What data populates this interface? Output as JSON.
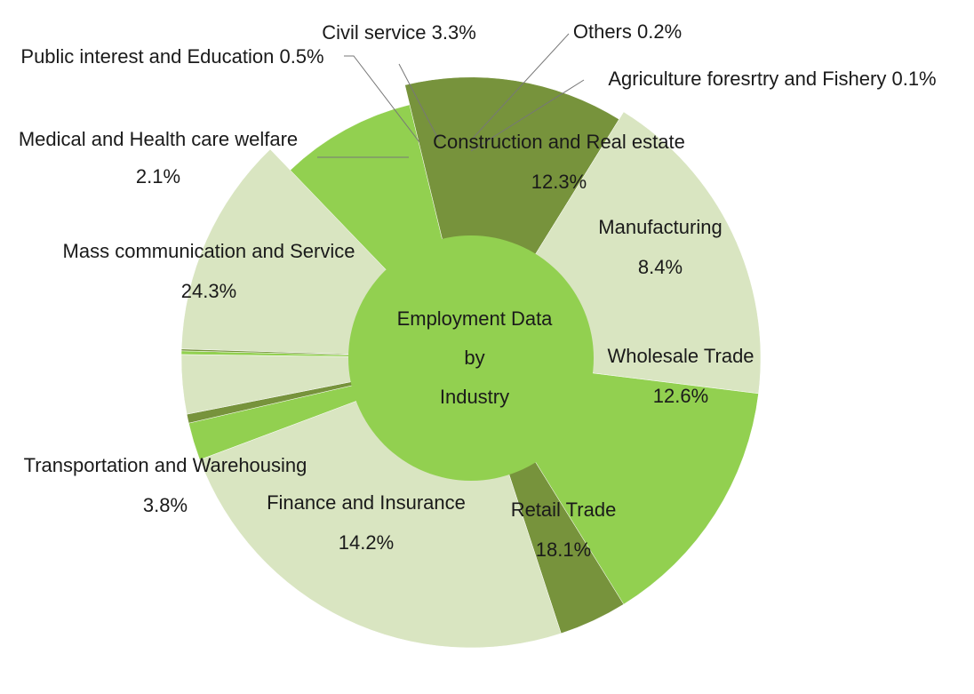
{
  "chart_data": {
    "type": "pie",
    "title": "Employment Data by Industry",
    "title_lines": [
      "Employment Data",
      "by",
      "Industry"
    ],
    "slices": [
      {
        "name": "Construction and Real estate",
        "label": "Construction and Real estate",
        "value": 12.3,
        "value_label": "12.3%",
        "color": "#d9e5c1",
        "r_fraction": 1.0
      },
      {
        "name": "Manufacturing",
        "label": "Manufacturing",
        "value": 8.4,
        "value_label": "8.4%",
        "color": "#92d050",
        "r_fraction": 0.9
      },
      {
        "name": "Wholesale Trade",
        "label": "Wholesale Trade",
        "value": 12.6,
        "value_label": "12.6%",
        "color": "#77933c",
        "r_fraction": 0.97
      },
      {
        "name": "Retail Trade",
        "label": "Retail Trade",
        "value": 18.1,
        "value_label": "18.1%",
        "color": "#d9e5c1",
        "r_fraction": 1.0
      },
      {
        "name": "Finance and Insurance",
        "label": "Finance and Insurance",
        "value": 14.2,
        "value_label": "14.2%",
        "color": "#92d050",
        "r_fraction": 1.0
      },
      {
        "name": "Transportation and Warehousing",
        "label": "Transportation and Warehousing",
        "value": 3.8,
        "value_label": "3.8%",
        "color": "#77933c",
        "r_fraction": 1.0
      },
      {
        "name": "Mass communication and Service",
        "label": "Mass communication and Service",
        "value": 24.3,
        "value_label": "24.3%",
        "color": "#d9e5c1",
        "r_fraction": 1.0
      },
      {
        "name": "Medical and Health care welfare",
        "label": "Medical and Health care welfare",
        "value": 2.1,
        "value_label": "2.1%",
        "color": "#92d050",
        "r_fraction": 1.0
      },
      {
        "name": "Public interest and Education",
        "label": "Public interest and Education 0.5%",
        "value": 0.5,
        "value_label": "",
        "color": "#77933c",
        "r_fraction": 1.0
      },
      {
        "name": "Civil service",
        "label": "Civil service 3.3%",
        "value": 3.3,
        "value_label": "",
        "color": "#d9e5c1",
        "r_fraction": 1.0
      },
      {
        "name": "Others",
        "label": "Others 0.2%",
        "value": 0.2,
        "value_label": "",
        "color": "#92d050",
        "r_fraction": 1.0
      },
      {
        "name": "Agriculture foresrtry and Fishery",
        "label": "Agriculture foresrtry and Fishery 0.1%",
        "value": 0.1,
        "value_label": "",
        "color": "#77933c",
        "r_fraction": 1.0
      }
    ],
    "hole_color": "#92d050",
    "legend": "none"
  }
}
